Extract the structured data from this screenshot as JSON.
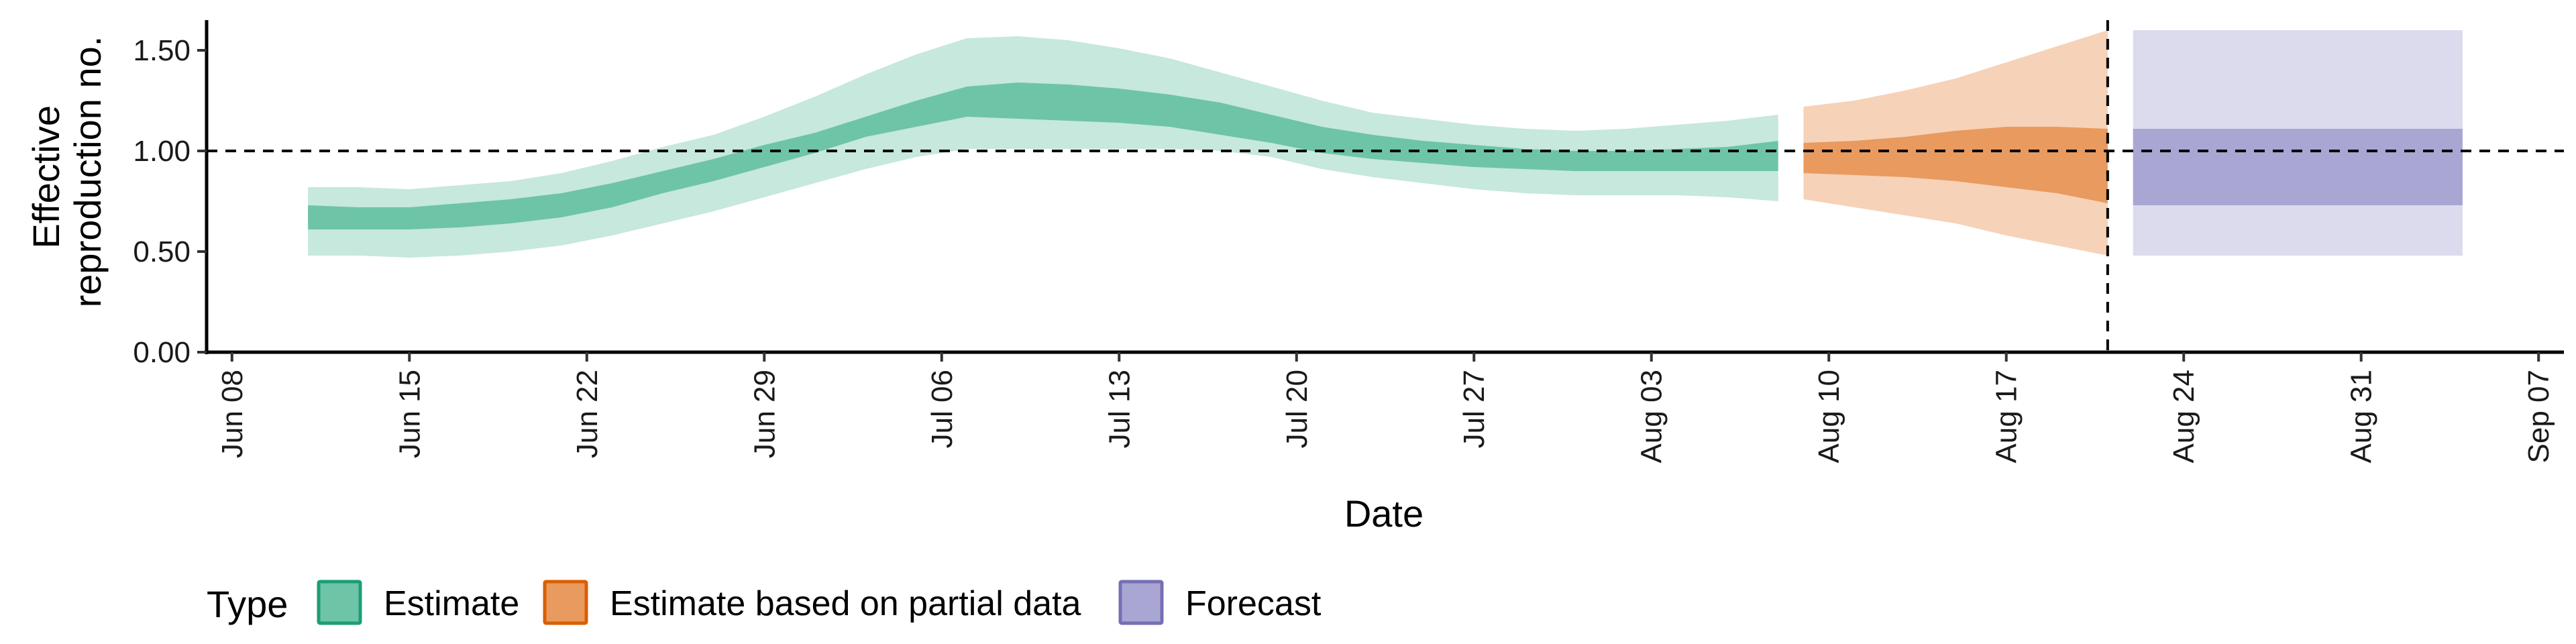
{
  "chart_data": {
    "type": "area",
    "title": "",
    "xlabel": "Date",
    "ylabel_lines": [
      "Effective",
      "reproduction no."
    ],
    "x_ticks": [
      "Jun 08",
      "Jun 15",
      "Jun 22",
      "Jun 29",
      "Jul 06",
      "Jul 13",
      "Jul 20",
      "Jul 27",
      "Aug 03",
      "Aug 10",
      "Aug 17",
      "Aug 24",
      "Aug 31",
      "Sep 07"
    ],
    "y_ticks": [
      "0.00",
      "0.50",
      "1.00",
      "1.50"
    ],
    "ylim": [
      0,
      1.65
    ],
    "xlim": [
      "2020-06-07",
      "2020-09-08"
    ],
    "reference_line_y": 1.0,
    "vline_date": "2020-08-21",
    "legend": {
      "title": "Type",
      "position": "bottom-left",
      "entries": [
        {
          "label": "Estimate",
          "fill": "#6ec4a7",
          "stroke": "#1b9e77"
        },
        {
          "label": "Estimate based on partial data",
          "fill": "#e99a5f",
          "stroke": "#d95f02"
        },
        {
          "label": "Forecast",
          "fill": "#a9a6d3",
          "stroke": "#7570b3"
        }
      ]
    },
    "series": [
      {
        "name": "Estimate",
        "inner_color": "#6ec4a7",
        "outer_color": "#c7e8dc",
        "points": [
          {
            "x": "2020-06-11",
            "lo90": 0.48,
            "lo50": 0.61,
            "hi50": 0.73,
            "hi90": 0.82
          },
          {
            "x": "2020-06-13",
            "lo90": 0.48,
            "lo50": 0.61,
            "hi50": 0.72,
            "hi90": 0.82
          },
          {
            "x": "2020-06-15",
            "lo90": 0.47,
            "lo50": 0.61,
            "hi50": 0.72,
            "hi90": 0.81
          },
          {
            "x": "2020-06-17",
            "lo90": 0.48,
            "lo50": 0.62,
            "hi50": 0.74,
            "hi90": 0.83
          },
          {
            "x": "2020-06-19",
            "lo90": 0.5,
            "lo50": 0.64,
            "hi50": 0.76,
            "hi90": 0.85
          },
          {
            "x": "2020-06-21",
            "lo90": 0.53,
            "lo50": 0.67,
            "hi50": 0.79,
            "hi90": 0.89
          },
          {
            "x": "2020-06-23",
            "lo90": 0.58,
            "lo50": 0.72,
            "hi50": 0.84,
            "hi90": 0.95
          },
          {
            "x": "2020-06-25",
            "lo90": 0.64,
            "lo50": 0.79,
            "hi50": 0.9,
            "hi90": 1.02
          },
          {
            "x": "2020-06-27",
            "lo90": 0.7,
            "lo50": 0.85,
            "hi50": 0.96,
            "hi90": 1.08
          },
          {
            "x": "2020-06-29",
            "lo90": 0.77,
            "lo50": 0.92,
            "hi50": 1.03,
            "hi90": 1.17
          },
          {
            "x": "2020-07-01",
            "lo90": 0.84,
            "lo50": 0.99,
            "hi50": 1.09,
            "hi90": 1.27
          },
          {
            "x": "2020-07-03",
            "lo90": 0.91,
            "lo50": 1.07,
            "hi50": 1.17,
            "hi90": 1.38
          },
          {
            "x": "2020-07-05",
            "lo90": 0.97,
            "lo50": 1.12,
            "hi50": 1.25,
            "hi90": 1.48
          },
          {
            "x": "2020-07-07",
            "lo90": 1.01,
            "lo50": 1.17,
            "hi50": 1.32,
            "hi90": 1.56
          },
          {
            "x": "2020-07-09",
            "lo90": 1.01,
            "lo50": 1.16,
            "hi50": 1.34,
            "hi90": 1.57
          },
          {
            "x": "2020-07-11",
            "lo90": 1.01,
            "lo50": 1.15,
            "hi50": 1.33,
            "hi90": 1.55
          },
          {
            "x": "2020-07-13",
            "lo90": 1.01,
            "lo50": 1.14,
            "hi50": 1.31,
            "hi90": 1.51
          },
          {
            "x": "2020-07-15",
            "lo90": 1.01,
            "lo50": 1.12,
            "hi50": 1.28,
            "hi90": 1.46
          },
          {
            "x": "2020-07-17",
            "lo90": 1.0,
            "lo50": 1.08,
            "hi50": 1.24,
            "hi90": 1.39
          },
          {
            "x": "2020-07-19",
            "lo90": 0.97,
            "lo50": 1.04,
            "hi50": 1.18,
            "hi90": 1.32
          },
          {
            "x": "2020-07-21",
            "lo90": 0.91,
            "lo50": 0.99,
            "hi50": 1.12,
            "hi90": 1.25
          },
          {
            "x": "2020-07-23",
            "lo90": 0.87,
            "lo50": 0.96,
            "hi50": 1.08,
            "hi90": 1.19
          },
          {
            "x": "2020-07-25",
            "lo90": 0.84,
            "lo50": 0.94,
            "hi50": 1.05,
            "hi90": 1.16
          },
          {
            "x": "2020-07-27",
            "lo90": 0.81,
            "lo50": 0.92,
            "hi50": 1.03,
            "hi90": 1.13
          },
          {
            "x": "2020-07-29",
            "lo90": 0.79,
            "lo50": 0.91,
            "hi50": 1.01,
            "hi90": 1.11
          },
          {
            "x": "2020-07-31",
            "lo90": 0.78,
            "lo50": 0.9,
            "hi50": 1.0,
            "hi90": 1.1
          },
          {
            "x": "2020-08-02",
            "lo90": 0.78,
            "lo50": 0.9,
            "hi50": 1.0,
            "hi90": 1.11
          },
          {
            "x": "2020-08-04",
            "lo90": 0.78,
            "lo50": 0.9,
            "hi50": 1.01,
            "hi90": 1.13
          },
          {
            "x": "2020-08-06",
            "lo90": 0.77,
            "lo50": 0.9,
            "hi50": 1.02,
            "hi90": 1.15
          },
          {
            "x": "2020-08-08",
            "lo90": 0.75,
            "lo50": 0.9,
            "hi50": 1.05,
            "hi90": 1.18
          }
        ]
      },
      {
        "name": "Estimate based on partial data",
        "inner_color": "#e99a5f",
        "outer_color": "#f6d2b8",
        "points": [
          {
            "x": "2020-08-09",
            "lo90": 0.76,
            "lo50": 0.89,
            "hi50": 1.04,
            "hi90": 1.22
          },
          {
            "x": "2020-08-11",
            "lo90": 0.72,
            "lo50": 0.88,
            "hi50": 1.05,
            "hi90": 1.25
          },
          {
            "x": "2020-08-13",
            "lo90": 0.68,
            "lo50": 0.87,
            "hi50": 1.07,
            "hi90": 1.3
          },
          {
            "x": "2020-08-15",
            "lo90": 0.64,
            "lo50": 0.85,
            "hi50": 1.1,
            "hi90": 1.36
          },
          {
            "x": "2020-08-17",
            "lo90": 0.58,
            "lo50": 0.82,
            "hi50": 1.12,
            "hi90": 1.44
          },
          {
            "x": "2020-08-19",
            "lo90": 0.53,
            "lo50": 0.79,
            "hi50": 1.12,
            "hi90": 1.52
          },
          {
            "x": "2020-08-21",
            "lo90": 0.48,
            "lo50": 0.74,
            "hi50": 1.11,
            "hi90": 1.6
          }
        ]
      },
      {
        "name": "Forecast",
        "inner_color": "#a9a6d3",
        "outer_color": "#dcdbed",
        "points": [
          {
            "x": "2020-08-22",
            "lo90": 0.48,
            "lo50": 0.73,
            "hi50": 1.11,
            "hi90": 1.6
          },
          {
            "x": "2020-09-04",
            "lo90": 0.48,
            "lo50": 0.73,
            "hi50": 1.11,
            "hi90": 1.6
          }
        ]
      }
    ]
  }
}
